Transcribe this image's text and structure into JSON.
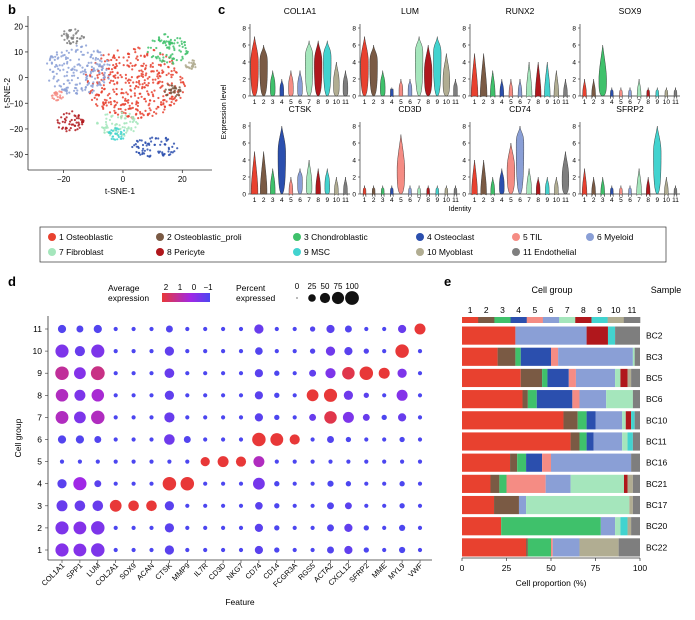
{
  "panels": {
    "b": "b",
    "c": "c",
    "d": "d",
    "e": "e"
  },
  "legend": [
    {
      "num": "1",
      "name": "Osteoblastic",
      "color": "#e8412f"
    },
    {
      "num": "2",
      "name": "Osteoblastic_proli",
      "color": "#7a5a44"
    },
    {
      "num": "3",
      "name": "Chondroblastic",
      "color": "#3fc16b"
    },
    {
      "num": "4",
      "name": "Osteoclast",
      "color": "#2b4fae"
    },
    {
      "num": "5",
      "name": "TIL",
      "color": "#f58c84"
    },
    {
      "num": "6",
      "name": "Myeloid",
      "color": "#8a9fd6"
    },
    {
      "num": "7",
      "name": "Fibroblast",
      "color": "#a5e6bc"
    },
    {
      "num": "8",
      "name": "Pericyte",
      "color": "#b0171c"
    },
    {
      "num": "9",
      "name": "MSC",
      "color": "#42d3cf"
    },
    {
      "num": "10",
      "name": "Myoblast",
      "color": "#b1ad92"
    },
    {
      "num": "11",
      "name": "Endothelial",
      "color": "#7e7e7e"
    }
  ],
  "chart_data": [
    {
      "panel": "b",
      "type": "scatter",
      "xlabel": "t-SNE-1",
      "ylabel": "t-SNE-2",
      "xticks": [
        -20,
        0,
        20
      ],
      "yticks": [
        -30,
        -20,
        -10,
        0,
        10,
        20
      ],
      "xlim": [
        -32,
        30
      ],
      "ylim": [
        -36,
        24
      ],
      "clusters": [
        {
          "cluster": "1",
          "cx": 4,
          "cy": -2,
          "rx": 17,
          "ry": 14
        },
        {
          "cluster": "6",
          "cx": -15,
          "cy": 3,
          "rx": 11,
          "ry": 10
        },
        {
          "cluster": "7",
          "cx": -2,
          "cy": -18,
          "rx": 7,
          "ry": 5
        },
        {
          "cluster": "3",
          "cx": 15,
          "cy": 11,
          "rx": 7,
          "ry": 6
        },
        {
          "cluster": "4",
          "cx": 11,
          "cy": -27,
          "rx": 8,
          "ry": 4
        },
        {
          "cluster": "8",
          "cx": -18,
          "cy": -17,
          "rx": 5,
          "ry": 4
        },
        {
          "cluster": "9",
          "cx": -2,
          "cy": -22,
          "rx": 3,
          "ry": 2.5
        },
        {
          "cluster": "11",
          "cx": -17,
          "cy": 16,
          "rx": 4,
          "ry": 3
        },
        {
          "cluster": "5",
          "cx": -22,
          "cy": -7,
          "rx": 2,
          "ry": 2
        },
        {
          "cluster": "2",
          "cx": 17,
          "cy": -5,
          "rx": 3,
          "ry": 3
        },
        {
          "cluster": "10",
          "cx": 23,
          "cy": 5,
          "rx": 2,
          "ry": 2
        }
      ]
    },
    {
      "panel": "c",
      "type": "violin",
      "ylabel": "Expression level",
      "xlabel": "Identity",
      "yticks": [
        0,
        2,
        4,
        6,
        8
      ],
      "ylim": [
        0,
        8
      ],
      "categories": [
        "1",
        "2",
        "3",
        "4",
        "5",
        "6",
        "7",
        "8",
        "9",
        "10",
        "11"
      ],
      "genes": [
        {
          "name": "COL1A1",
          "max": [
            7,
            6,
            3,
            2,
            3,
            3,
            6.5,
            6.5,
            6.5,
            4,
            3
          ],
          "center": [
            4,
            4,
            1,
            0.5,
            1,
            1,
            4.5,
            4,
            4.5,
            1.5,
            1
          ]
        },
        {
          "name": "LUM",
          "max": [
            7,
            6,
            3,
            1,
            2,
            2,
            7,
            6,
            7,
            5,
            2
          ],
          "center": [
            4,
            4,
            1,
            0.3,
            0.5,
            0.5,
            5,
            3,
            5,
            2,
            0.5
          ]
        },
        {
          "name": "RUNX2",
          "max": [
            5,
            5,
            3,
            2,
            2,
            2,
            4,
            4,
            4,
            3,
            2
          ],
          "center": [
            0.3,
            0.3,
            0.2,
            0.2,
            0.1,
            0.1,
            0.2,
            0.2,
            0.2,
            0.1,
            0.1
          ]
        },
        {
          "name": "SOX9",
          "max": [
            2,
            2,
            6,
            1,
            1,
            1,
            2,
            1,
            1,
            1,
            1
          ],
          "center": [
            0,
            0,
            2,
            0,
            0,
            0,
            0,
            0,
            0,
            0,
            0
          ]
        },
        {
          "name": "CTSK",
          "max": [
            5,
            5,
            3,
            8,
            2,
            3,
            4,
            3,
            3,
            2,
            2
          ],
          "center": [
            0.5,
            0.5,
            0.5,
            5,
            0.2,
            1.5,
            1,
            0.5,
            1,
            0.2,
            0.2
          ]
        },
        {
          "name": "CD3D",
          "max": [
            1,
            1,
            1,
            1,
            7,
            1,
            1,
            1,
            1,
            1,
            1
          ],
          "center": [
            0,
            0,
            0,
            0,
            3,
            0,
            0,
            0,
            0,
            0,
            0
          ]
        },
        {
          "name": "CD74",
          "max": [
            4,
            4,
            2,
            3,
            6,
            8,
            3,
            2,
            2,
            2,
            5
          ],
          "center": [
            0.3,
            0.3,
            0.2,
            1,
            3,
            6,
            0.5,
            0.3,
            0.3,
            0.3,
            2
          ]
        },
        {
          "name": "SFRP2",
          "max": [
            3,
            2,
            2,
            1,
            1,
            1,
            3,
            2,
            8,
            2,
            1
          ],
          "center": [
            0,
            0,
            0,
            0,
            0,
            0,
            0.2,
            0,
            5,
            0,
            0
          ]
        }
      ]
    },
    {
      "panel": "d",
      "type": "dot",
      "xlabel": "Feature",
      "ylabel": "Cell group",
      "legend_color_title": "Average expression",
      "legend_color_ticks": [
        "2",
        "1",
        "0",
        "−1"
      ],
      "legend_size_title": "Percent expressed",
      "legend_size_ticks": [
        "0",
        "25",
        "50",
        "75",
        "100"
      ],
      "features": [
        "COL1A1",
        "SPP1",
        "LUM",
        "COL2A1",
        "SOX9",
        "ACAN",
        "CTSK",
        "MMP9",
        "IL7R",
        "CD3D",
        "NKG7",
        "CD74",
        "CD14",
        "FCGR3A",
        "RGS5",
        "ACTA2",
        "CXCL12",
        "SFRP2",
        "MME",
        "MYL9",
        "VWF"
      ],
      "groups": [
        "1",
        "2",
        "3",
        "4",
        "5",
        "6",
        "7",
        "8",
        "9",
        "10",
        "11"
      ],
      "comment_values": "percent[group][feature], expression[group][feature] in scaled units",
      "percent": [
        [
          90,
          85,
          95,
          5,
          5,
          5,
          40,
          5,
          5,
          5,
          5,
          30,
          10,
          5,
          5,
          20,
          30,
          10,
          5,
          15,
          5
        ],
        [
          90,
          85,
          95,
          5,
          5,
          5,
          40,
          5,
          5,
          5,
          5,
          30,
          10,
          5,
          5,
          20,
          30,
          10,
          5,
          15,
          5
        ],
        [
          60,
          55,
          55,
          70,
          55,
          55,
          40,
          5,
          5,
          5,
          5,
          25,
          10,
          5,
          5,
          20,
          20,
          5,
          5,
          10,
          5
        ],
        [
          40,
          90,
          20,
          5,
          5,
          5,
          95,
          95,
          5,
          5,
          5,
          70,
          10,
          5,
          5,
          15,
          10,
          5,
          5,
          10,
          5
        ],
        [
          5,
          5,
          5,
          5,
          5,
          5,
          5,
          5,
          40,
          60,
          50,
          60,
          5,
          5,
          5,
          5,
          5,
          5,
          5,
          5,
          5
        ],
        [
          30,
          30,
          20,
          5,
          5,
          5,
          55,
          20,
          5,
          5,
          5,
          95,
          85,
          50,
          5,
          20,
          10,
          5,
          5,
          10,
          5
        ],
        [
          85,
          70,
          95,
          5,
          5,
          5,
          50,
          5,
          5,
          5,
          5,
          30,
          10,
          5,
          20,
          80,
          60,
          20,
          10,
          30,
          5
        ],
        [
          80,
          60,
          80,
          5,
          5,
          5,
          40,
          5,
          5,
          5,
          5,
          30,
          10,
          5,
          70,
          90,
          40,
          10,
          5,
          60,
          5
        ],
        [
          95,
          70,
          100,
          5,
          5,
          5,
          45,
          5,
          5,
          5,
          5,
          30,
          10,
          5,
          20,
          50,
          80,
          95,
          60,
          40,
          5
        ],
        [
          90,
          50,
          90,
          5,
          5,
          5,
          40,
          5,
          5,
          5,
          5,
          25,
          5,
          5,
          10,
          40,
          30,
          10,
          5,
          95,
          5
        ],
        [
          30,
          20,
          30,
          5,
          5,
          5,
          20,
          5,
          5,
          5,
          5,
          40,
          5,
          5,
          10,
          30,
          20,
          5,
          5,
          30,
          60
        ]
      ],
      "expression": [
        [
          -0.2,
          -0.2,
          -0.3,
          -1,
          -1,
          -1,
          -0.8,
          -1,
          -1,
          -1,
          -1,
          -0.8,
          -1,
          -1,
          -1,
          -0.9,
          -0.7,
          -1,
          -1,
          -1,
          -1
        ],
        [
          -0.3,
          -0.2,
          -0.3,
          -1,
          -1,
          -1,
          -0.8,
          -1,
          -1,
          -1,
          -1,
          -0.8,
          -1,
          -1,
          -1,
          -0.9,
          -0.7,
          -1,
          -1,
          -1,
          -1
        ],
        [
          -0.6,
          -0.6,
          -0.6,
          2,
          2,
          2,
          -0.8,
          -1,
          -1,
          -1,
          -1,
          -0.8,
          -1,
          -1,
          -1,
          -0.9,
          -0.8,
          -1,
          -1,
          -1,
          -1
        ],
        [
          -0.8,
          0.2,
          -0.8,
          -1,
          -1,
          -1,
          2,
          2,
          -1,
          -1,
          -1,
          -0.4,
          -1,
          -1,
          -1,
          -1,
          -1,
          -1,
          -1,
          -1,
          -1
        ],
        [
          -1,
          -1,
          -1,
          -1,
          -1,
          -1,
          -1,
          -1,
          2,
          2,
          2,
          0.6,
          -1,
          -1,
          -1,
          -1,
          -1,
          -1,
          -1,
          -1,
          -1
        ],
        [
          -0.9,
          -0.9,
          -0.9,
          -1,
          -1,
          -1,
          -0.5,
          -0.9,
          -1,
          -1,
          -1,
          2,
          2,
          2,
          -1,
          -0.9,
          -1,
          -1,
          -1,
          -1,
          -1
        ],
        [
          0.6,
          -0.3,
          0.6,
          -1,
          -1,
          -1,
          -0.6,
          -1,
          -1,
          -1,
          -1,
          -0.8,
          -1,
          -1,
          -0.6,
          1.8,
          -0.3,
          -0.6,
          -1,
          -0.6,
          -1
        ],
        [
          0.6,
          -0.3,
          0.4,
          -1,
          -1,
          -1,
          -0.7,
          -1,
          -1,
          -1,
          -1,
          -0.8,
          -1,
          -1,
          2,
          2,
          -0.5,
          -0.8,
          -1,
          -0.2,
          -1
        ],
        [
          1,
          -0.2,
          1.2,
          -1,
          -1,
          -1,
          -0.6,
          -1,
          -1,
          -1,
          -1,
          -0.8,
          -1,
          -1,
          -0.7,
          -0.3,
          1.8,
          2,
          2,
          -0.3,
          -1
        ],
        [
          -0.3,
          -0.6,
          -0.3,
          -1,
          -1,
          -1,
          -0.7,
          -1,
          -1,
          -1,
          -1,
          -0.9,
          -1,
          -1,
          -0.9,
          -0.5,
          -0.8,
          -0.9,
          -1,
          2,
          -1
        ],
        [
          -0.9,
          -0.9,
          -0.9,
          -1,
          -1,
          -1,
          -0.9,
          -1,
          -1,
          -1,
          -1,
          -0.6,
          -1,
          -1,
          -0.9,
          -0.8,
          -0.9,
          -1,
          -1,
          -0.6,
          2
        ]
      ]
    },
    {
      "panel": "e",
      "type": "stacked-bar",
      "title": "Cell group",
      "title2": "Sample",
      "xlabel": "Cell proportion (%)",
      "xticks": [
        0,
        25,
        50,
        75,
        100
      ],
      "xlim": [
        0,
        100
      ],
      "categories": [
        "BC2",
        "BC3",
        "BC5",
        "BC6",
        "BC10",
        "BC11",
        "BC16",
        "BC21",
        "BC17",
        "BC20",
        "BC22"
      ],
      "series_order": [
        "1",
        "2",
        "3",
        "4",
        "5",
        "6",
        "7",
        "8",
        "9",
        "10",
        "11"
      ],
      "values": [
        [
          30,
          0,
          0,
          0,
          0,
          40,
          0,
          12,
          4,
          0,
          14
        ],
        [
          20,
          10,
          3,
          17,
          4,
          42,
          1,
          0,
          0,
          0,
          3
        ],
        [
          33,
          12,
          3,
          12,
          4,
          22,
          3,
          4,
          0,
          2,
          5
        ],
        [
          34,
          3,
          5,
          20,
          4,
          15,
          15,
          0,
          0,
          0,
          4
        ],
        [
          57,
          8,
          5,
          5,
          0,
          15,
          2,
          3,
          2,
          0,
          3
        ],
        [
          61,
          5,
          4,
          4,
          0,
          16,
          3,
          0,
          3,
          0,
          4
        ],
        [
          27,
          4,
          5,
          9,
          5,
          45,
          0,
          0,
          0,
          0,
          5
        ],
        [
          16,
          5,
          4,
          0,
          22,
          14,
          30,
          2,
          0,
          3,
          4
        ],
        [
          18,
          14,
          0,
          0,
          0,
          4,
          58,
          0,
          0,
          2,
          4
        ],
        [
          22,
          0,
          56,
          0,
          0,
          8,
          3,
          0,
          4,
          2,
          5
        ],
        [
          36,
          1,
          13,
          0,
          1,
          15,
          0,
          0,
          0,
          22,
          12
        ]
      ]
    }
  ]
}
